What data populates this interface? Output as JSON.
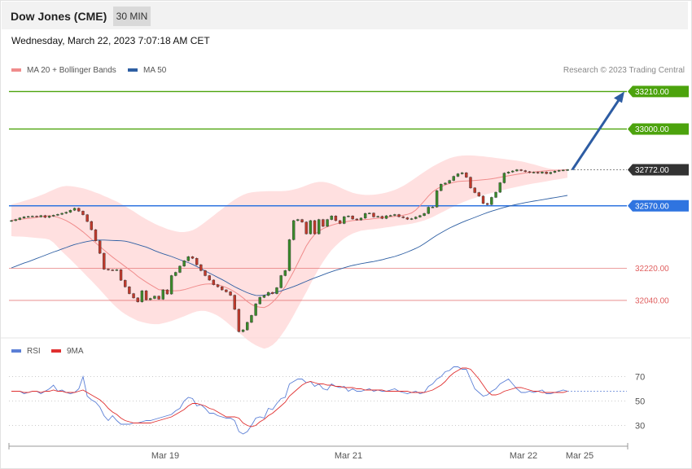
{
  "header": {
    "title": "Dow Jones (CME)",
    "timeframe": "30 MIN",
    "datetime": "Wednesday, March 22, 2023 7:07:18 AM CET"
  },
  "legend": {
    "ma20": {
      "label": "MA 20 + Bollinger Bands",
      "color": "#f08c8c"
    },
    "ma50": {
      "label": "MA 50",
      "color": "#2e5fa3"
    },
    "copyright": "Research © 2023 Trading Central"
  },
  "rsi_legend": {
    "rsi": {
      "label": "RSI",
      "color": "#5b7fd6"
    },
    "ma9": {
      "label": "9MA",
      "color": "#e03030"
    }
  },
  "chart_data": [
    {
      "type": "candlestick",
      "ylim": [
        31830,
        33335
      ],
      "grid": false,
      "levels": [
        {
          "value": "33210.00",
          "price": 33210,
          "color": "#4ca30d",
          "style": "solid",
          "tag": "filled"
        },
        {
          "value": "33000.00",
          "price": 33000,
          "color": "#4ca30d",
          "style": "solid",
          "tag": "filled"
        },
        {
          "value": "32772.00",
          "price": 32772,
          "color": "#333333",
          "style": "dotted",
          "tag": "filled"
        },
        {
          "value": "32570.00",
          "price": 32570,
          "color": "#2f74e0",
          "style": "solid",
          "tag": "filled"
        },
        {
          "value": "32220.00",
          "price": 32220,
          "color": "#e06060",
          "style": "thin",
          "tag": "text"
        },
        {
          "value": "32040.00",
          "price": 32040,
          "color": "#e06060",
          "style": "thin",
          "tag": "text"
        }
      ],
      "close": [
        32487,
        32493,
        32502,
        32508,
        32510,
        32512,
        32508,
        32515,
        32505,
        32512,
        32517,
        32522,
        32528,
        32534,
        32545,
        32556,
        32540,
        32520,
        32482,
        32436,
        32374,
        32304,
        32215,
        32211,
        32209,
        32212,
        32153,
        32116,
        32078,
        32054,
        32032,
        32094,
        32044,
        32051,
        32064,
        32047,
        32099,
        32076,
        32179,
        32197,
        32232,
        32262,
        32285,
        32276,
        32240,
        32207,
        32179,
        32154,
        32128,
        32116,
        32099,
        32088,
        32069,
        31990,
        31865,
        31875,
        31917,
        31956,
        32021,
        32057,
        32068,
        32085,
        32078,
        32111,
        32179,
        32207,
        32380,
        32487,
        32493,
        32479,
        32413,
        32487,
        32413,
        32493,
        32455,
        32493,
        32513,
        32487,
        32471,
        32509,
        32513,
        32496,
        32491,
        32501,
        32527,
        32529,
        32508,
        32511,
        32499,
        32514,
        32516,
        32521,
        32509,
        32503,
        32495,
        32498,
        32507,
        32515,
        32527,
        32562,
        32563,
        32655,
        32691,
        32697,
        32712,
        32735,
        32749,
        32755,
        32730,
        32670,
        32644,
        32624,
        32583,
        32577,
        32617,
        32646,
        32699,
        32753,
        32759,
        32765,
        32772,
        32767,
        32761,
        32756,
        32758,
        32753,
        32759,
        32750,
        32757,
        32764,
        32768,
        32770,
        32772
      ],
      "ma20_band": {
        "mid": [
          32489,
          32491,
          32494,
          32497,
          32499,
          32502,
          32505,
          32509,
          32512,
          32515,
          32512,
          32506,
          32497,
          32487,
          32474,
          32459,
          32442,
          32424,
          32404,
          32383,
          32362,
          32342,
          32322,
          32302,
          32283,
          32265,
          32248,
          32230,
          32212,
          32195,
          32175,
          32159,
          32143,
          32128,
          32114,
          32100,
          32099,
          32095,
          32094,
          32094,
          32096,
          32100,
          32107,
          32114,
          32121,
          32127,
          32131,
          32133,
          32132,
          32128,
          32121,
          32112,
          32101,
          32088,
          32072,
          32054,
          32034,
          32018,
          32006,
          32002,
          32000,
          32011,
          32030,
          32055,
          32086,
          32117,
          32159,
          32202,
          32249,
          32297,
          32345,
          32381,
          32409,
          32428,
          32442,
          32453,
          32461,
          32468,
          32474,
          32479,
          32483,
          32487,
          32489,
          32491,
          32493,
          32495,
          32498,
          32500,
          32503,
          32506,
          32508,
          32511,
          32514,
          32517,
          32522,
          32530,
          32546,
          32570,
          32597,
          32625,
          32648,
          32664,
          32677,
          32687,
          32695,
          32701,
          32706,
          32708,
          32709,
          32710,
          32712,
          32714,
          32716,
          32718,
          32721,
          32725,
          32730,
          32734,
          32738,
          32742,
          32746,
          32750,
          32754,
          32757,
          32759,
          32762,
          32764,
          32766,
          32768,
          32769,
          32770,
          32771,
          32772
        ],
        "upper": [
          32578,
          32584,
          32590,
          32597,
          32604,
          32612,
          32620,
          32629,
          32638,
          32650,
          32660,
          32670,
          32678,
          32681,
          32680,
          32677,
          32673,
          32668,
          32661,
          32653,
          32644,
          32636,
          32625,
          32616,
          32604,
          32594,
          32581,
          32568,
          32553,
          32539,
          32523,
          32508,
          32495,
          32482,
          32470,
          32459,
          32450,
          32440,
          32433,
          32427,
          32423,
          32423,
          32426,
          32433,
          32445,
          32461,
          32479,
          32497,
          32515,
          32534,
          32552,
          32571,
          32589,
          32605,
          32619,
          32631,
          32640,
          32645,
          32648,
          32650,
          32651,
          32652,
          32652,
          32652,
          32652,
          32653,
          32656,
          32661,
          32667,
          32675,
          32684,
          32693,
          32700,
          32704,
          32704,
          32700,
          32693,
          32684,
          32673,
          32662,
          32652,
          32643,
          32637,
          32633,
          32631,
          32631,
          32632,
          32635,
          32639,
          32644,
          32651,
          32659,
          32669,
          32681,
          32695,
          32711,
          32727,
          32744,
          32760,
          32775,
          32790,
          32803,
          32815,
          32826,
          32836,
          32843,
          32848,
          32851,
          32852,
          32852,
          32851,
          32849,
          32847,
          32844,
          32841,
          32838,
          32835,
          32832,
          32829,
          32826,
          32823,
          32819,
          32814,
          32808,
          32802,
          32795,
          32788,
          32782,
          32777,
          32773,
          32770,
          32768,
          32766
        ],
        "lower": [
          32400,
          32398,
          32398,
          32397,
          32394,
          32392,
          32390,
          32388,
          32386,
          32381,
          32364,
          32340,
          32314,
          32292,
          32270,
          32246,
          32222,
          32198,
          32174,
          32150,
          32125,
          32100,
          32074,
          32048,
          32022,
          32000,
          31980,
          31963,
          31949,
          31937,
          31926,
          31919,
          31913,
          31909,
          31907,
          31907,
          31912,
          31918,
          31925,
          31933,
          31942,
          31951,
          31961,
          31971,
          31978,
          31982,
          31981,
          31975,
          31966,
          31954,
          31938,
          31920,
          31900,
          31880,
          31860,
          31840,
          31820,
          31803,
          31789,
          31778,
          31770,
          31776,
          31790,
          31812,
          31843,
          31876,
          31915,
          31957,
          32000,
          32043,
          32086,
          32132,
          32176,
          32218,
          32257,
          32291,
          32321,
          32346,
          32368,
          32387,
          32402,
          32414,
          32423,
          32430,
          32434,
          32437,
          32439,
          32442,
          32445,
          32449,
          32452,
          32456,
          32460,
          32463,
          32466,
          32470,
          32475,
          32481,
          32488,
          32497,
          32507,
          32519,
          32531,
          32543,
          32555,
          32566,
          32578,
          32588,
          32597,
          32606,
          32614,
          32622,
          32629,
          32636,
          32642,
          32648,
          32654,
          32660,
          32666,
          32671,
          32676,
          32681,
          32686,
          32691,
          32695,
          32699,
          32703,
          32707,
          32711,
          32715,
          32719,
          32723,
          32727
        ]
      },
      "ma50": [
        32222,
        32231,
        32240,
        32249,
        32257,
        32266,
        32275,
        32284,
        32293,
        32302,
        32311,
        32319,
        32328,
        32336,
        32345,
        32353,
        32359,
        32365,
        32370,
        32374,
        32377,
        32378,
        32378,
        32377,
        32376,
        32375,
        32374,
        32372,
        32367,
        32360,
        32353,
        32346,
        32339,
        32329,
        32319,
        32310,
        32301,
        32294,
        32286,
        32277,
        32268,
        32259,
        32252,
        32242,
        32230,
        32218,
        32205,
        32193,
        32181,
        32169,
        32157,
        32144,
        32130,
        32117,
        32105,
        32094,
        32083,
        32075,
        32068,
        32067,
        32069,
        32074,
        32080,
        32087,
        32093,
        32101,
        32109,
        32118,
        32127,
        32137,
        32147,
        32157,
        32166,
        32175,
        32184,
        32193,
        32201,
        32209,
        32216,
        32223,
        32230,
        32236,
        32241,
        32246,
        32250,
        32254,
        32258,
        32263,
        32268,
        32274,
        32280,
        32286,
        32294,
        32302,
        32311,
        32321,
        32331,
        32343,
        32358,
        32374,
        32390,
        32405,
        32419,
        32432,
        32445,
        32456,
        32467,
        32477,
        32487,
        32496,
        32505,
        32514,
        32523,
        32532,
        32540,
        32547,
        32554,
        32561,
        32567,
        32573,
        32578,
        32583,
        32588,
        32592,
        32596,
        32600,
        32604,
        32608,
        32612,
        32616,
        32620,
        32624,
        32628
      ],
      "forecast_arrow": {
        "from": 32772,
        "to": 33210
      },
      "x_ticks": [
        "Mar 19",
        "Mar 21",
        "Mar 22",
        "Mar 25"
      ]
    },
    {
      "type": "line",
      "title": "",
      "ylim": [
        15,
        85
      ],
      "y_ticks": [
        "70",
        "50",
        "30"
      ],
      "series": [
        {
          "name": "RSI",
          "values": [
            58,
            58,
            58,
            56,
            57,
            58,
            58,
            56,
            58,
            60,
            63,
            58,
            59,
            57,
            56,
            57,
            60,
            70,
            54,
            51,
            49,
            45,
            38,
            34,
            38,
            34,
            31,
            31,
            31,
            32,
            32,
            33,
            34,
            34,
            35,
            36,
            37,
            38,
            39,
            42,
            44,
            50,
            53,
            52,
            46,
            47,
            44,
            40,
            40,
            38,
            37,
            36,
            36,
            34,
            25,
            23,
            25,
            30,
            36,
            37,
            36,
            44,
            43,
            48,
            52,
            53,
            64,
            66,
            68,
            68,
            65,
            66,
            62,
            64,
            60,
            59,
            64,
            62,
            61,
            62,
            58,
            60,
            58,
            58,
            59,
            60,
            58,
            59,
            58,
            58,
            59,
            60,
            58,
            57,
            56,
            57,
            58,
            56,
            57,
            62,
            64,
            68,
            70,
            74,
            75,
            78,
            78,
            76,
            76,
            68,
            60,
            57,
            54,
            55,
            58,
            60,
            64,
            66,
            68,
            64,
            60,
            57,
            57,
            58,
            57,
            58,
            59,
            56,
            56,
            57,
            58,
            59,
            58
          ]
        },
        {
          "name": "9MA",
          "values": [
            58,
            58,
            58,
            57,
            57,
            58,
            58,
            57,
            58,
            58,
            59,
            58,
            58,
            57,
            57,
            57,
            58,
            59,
            57,
            55,
            53,
            51,
            48,
            44,
            41,
            39,
            36,
            34,
            33,
            32,
            32,
            32,
            32,
            32,
            33,
            34,
            35,
            36,
            37,
            39,
            41,
            43,
            46,
            48,
            48,
            47,
            46,
            44,
            43,
            41,
            39,
            37,
            37,
            37,
            36,
            32,
            30,
            29,
            30,
            33,
            35,
            38,
            40,
            43,
            46,
            49,
            54,
            57,
            60,
            63,
            65,
            66,
            65,
            64,
            64,
            63,
            63,
            62,
            62,
            61,
            61,
            61,
            60,
            60,
            59,
            59,
            59,
            59,
            59,
            58,
            58,
            58,
            58,
            58,
            58,
            57,
            57,
            57,
            57,
            58,
            59,
            61,
            63,
            66,
            70,
            73,
            75,
            77,
            77,
            76,
            72,
            68,
            63,
            58,
            55,
            55,
            56,
            58,
            59,
            60,
            61,
            61,
            60,
            59,
            58,
            58,
            57,
            57,
            57,
            57,
            57,
            57,
            58
          ]
        }
      ]
    }
  ]
}
